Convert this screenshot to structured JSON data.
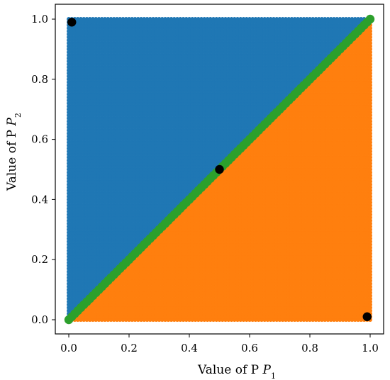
{
  "chart_data": {
    "type": "scatter",
    "xlabel": "Value of P",
    "xlabel_sub": "1",
    "ylabel": "Value of P",
    "ylabel_sub": "2",
    "xlim": [
      0.0,
      1.0
    ],
    "ylim": [
      0.0,
      1.0
    ],
    "xticks": [
      "0.0",
      "0.2",
      "0.4",
      "0.6",
      "0.8",
      "1.0"
    ],
    "yticks": [
      "0.0",
      "0.2",
      "0.4",
      "0.6",
      "0.8",
      "1.0"
    ],
    "grid": false,
    "series": [
      {
        "region": "above-diagonal",
        "color": "#1f77b4",
        "rule": "grid points with P2 > P1",
        "grid_step": 0.01
      },
      {
        "region": "below-diagonal",
        "color": "#ff7f0e",
        "rule": "grid points with P2 < P1",
        "grid_step": 0.01
      },
      {
        "region": "diagonal",
        "color": "#2ca02c",
        "rule": "grid points with P2 = P1",
        "grid_step": 0.01
      },
      {
        "region": "highlighted",
        "color": "#000000",
        "points": [
          [
            0.01,
            0.99
          ],
          [
            0.5,
            0.5
          ],
          [
            0.99,
            0.01
          ]
        ]
      }
    ]
  }
}
